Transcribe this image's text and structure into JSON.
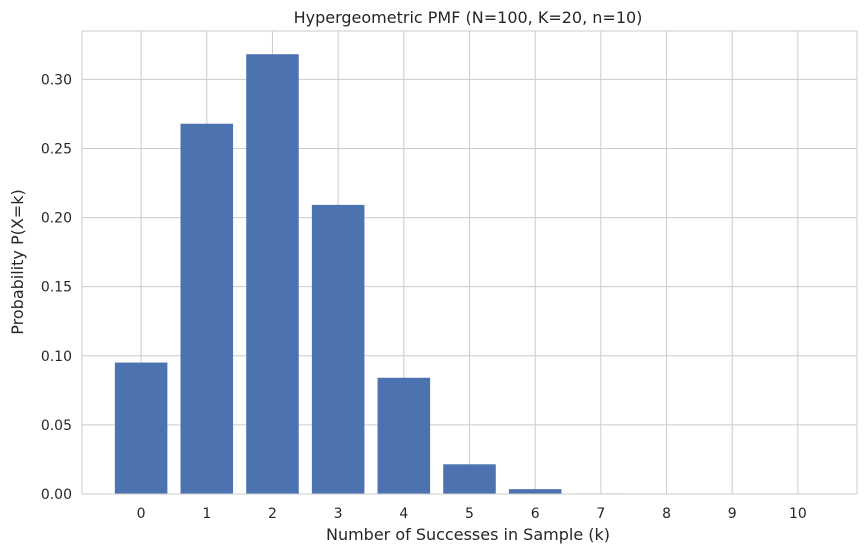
{
  "chart_data": {
    "type": "bar",
    "title": "Hypergeometric PMF (N=100, K=20, n=10)",
    "xlabel": "Number of Successes in Sample (k)",
    "ylabel": "Probability P(X=k)",
    "categories": [
      "0",
      "1",
      "2",
      "3",
      "4",
      "5",
      "6",
      "7",
      "8",
      "9",
      "10"
    ],
    "values": [
      0.0951,
      0.2679,
      0.3182,
      0.2092,
      0.0841,
      0.0215,
      0.0035,
      0.0004,
      0.0,
      0.0,
      0.0
    ],
    "ylim": [
      0,
      0.335
    ],
    "yticks": [
      "0.00",
      "0.05",
      "0.10",
      "0.15",
      "0.20",
      "0.25",
      "0.30"
    ],
    "grid": true,
    "colors": {
      "bar": "#4c72b0",
      "grid": "#cccccc",
      "axes": "#cccccc",
      "text": "#262626"
    }
  }
}
